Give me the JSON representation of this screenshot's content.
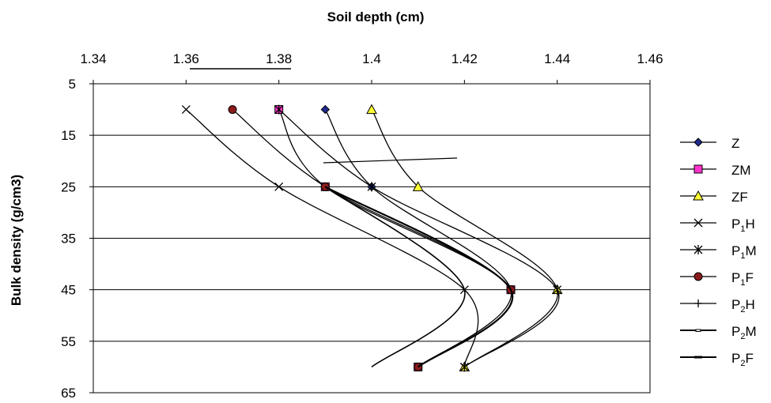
{
  "chart_data": {
    "type": "line",
    "title": "",
    "xlabel": "Soil depth (cm)",
    "ylabel": "Bulk density (g/cm3)",
    "x_axis_position": "top",
    "y_axis_reversed": true,
    "xlim": [
      1.34,
      1.46
    ],
    "ylim": [
      5,
      65
    ],
    "x_ticks": [
      "1.34",
      "1.36",
      "1.38",
      "1.4",
      "1.42",
      "1.44",
      "1.46"
    ],
    "y_ticks": [
      "5",
      "15",
      "25",
      "35",
      "45",
      "55",
      "65"
    ],
    "grid": "horizontal",
    "legend_position": "right",
    "series": [
      {
        "name": "Z",
        "label_main": "Z",
        "label_sub": "",
        "label_tail": "",
        "marker": "diamond",
        "marker_color": "#1f2a8c",
        "points": [
          [
            1.39,
            10
          ],
          [
            1.4,
            25
          ],
          [
            1.43,
            45
          ],
          [
            1.41,
            60
          ]
        ]
      },
      {
        "name": "ZM",
        "label_main": "ZM",
        "label_sub": "",
        "label_tail": "",
        "marker": "square",
        "marker_color": "#ff33cc",
        "points": [
          [
            1.38,
            10
          ],
          [
            1.39,
            25
          ],
          [
            1.43,
            45
          ],
          [
            1.41,
            60
          ]
        ]
      },
      {
        "name": "ZF",
        "label_main": "ZF",
        "label_sub": "",
        "label_tail": "",
        "marker": "triangle",
        "marker_color": "#ffff33",
        "points": [
          [
            1.4,
            10
          ],
          [
            1.41,
            25
          ],
          [
            1.44,
            45
          ],
          [
            1.42,
            60
          ]
        ]
      },
      {
        "name": "P1H",
        "label_main": "P",
        "label_sub": "1",
        "label_tail": "H",
        "marker": "x",
        "marker_color": "#000000",
        "points": [
          [
            1.36,
            10
          ],
          [
            1.38,
            25
          ],
          [
            1.42,
            45
          ],
          [
            1.42,
            60
          ]
        ]
      },
      {
        "name": "P1M",
        "label_main": "P",
        "label_sub": "1",
        "label_tail": "M",
        "marker": "star",
        "marker_color": "#000000",
        "points": [
          [
            1.38,
            10
          ],
          [
            1.4,
            25
          ],
          [
            1.44,
            45
          ],
          [
            1.42,
            60
          ]
        ]
      },
      {
        "name": "P1F",
        "label_main": "P",
        "label_sub": "1",
        "label_tail": "F",
        "marker": "circle",
        "marker_color": "#8b1a1a",
        "points": [
          [
            1.37,
            10
          ],
          [
            1.39,
            25
          ],
          [
            1.43,
            45
          ],
          [
            1.41,
            60
          ]
        ]
      },
      {
        "name": "P2H",
        "label_main": "P",
        "label_sub": "2",
        "label_tail": "H",
        "marker": "plus",
        "marker_color": "#000000",
        "points": [
          [
            1.39,
            25
          ],
          [
            1.43,
            45
          ],
          [
            1.41,
            60
          ]
        ]
      },
      {
        "name": "P2M",
        "label_main": "P",
        "label_sub": "2",
        "label_tail": "M",
        "marker": "dash",
        "marker_color": "#000000",
        "points": [
          [
            1.39,
            25
          ],
          [
            1.42,
            45
          ],
          [
            1.4,
            60
          ]
        ]
      },
      {
        "name": "P2F",
        "label_main": "P",
        "label_sub": "2",
        "label_tail": "F",
        "marker": "bar",
        "marker_color": "#000000",
        "points": [
          [
            1.39,
            25
          ],
          [
            1.43,
            45
          ],
          [
            1.41,
            60
          ]
        ]
      }
    ]
  }
}
